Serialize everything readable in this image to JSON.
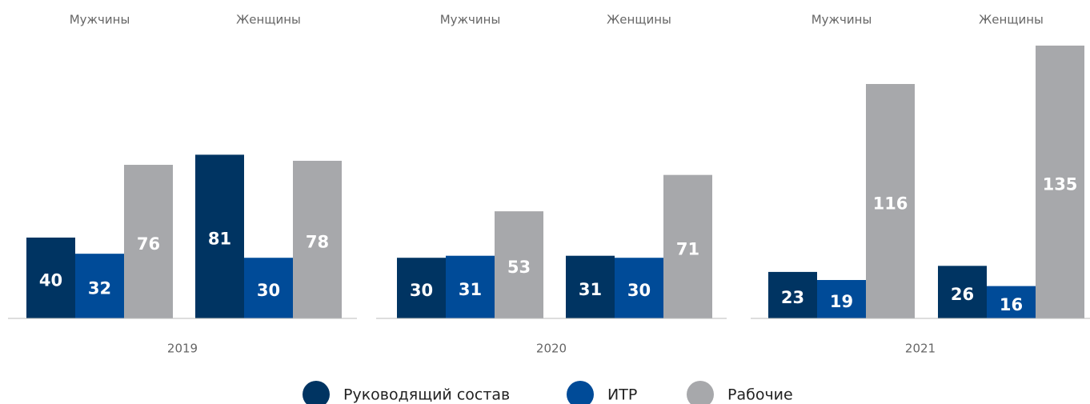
{
  "chart_data": [
    {
      "type": "bar",
      "title": "2019",
      "categories": [
        "Мужчины",
        "Женщины"
      ],
      "ylim": [
        0,
        135
      ],
      "series": [
        {
          "name": "Руководящий состав",
          "color": "#003462",
          "values": [
            40,
            81
          ]
        },
        {
          "name": "ИТР",
          "color": "#004b98",
          "values": [
            32,
            30
          ]
        },
        {
          "name": "Рабочие",
          "color": "#a7a8ab",
          "values": [
            76,
            78
          ]
        }
      ]
    },
    {
      "type": "bar",
      "title": "2020",
      "categories": [
        "Мужчины",
        "Женщины"
      ],
      "ylim": [
        0,
        135
      ],
      "series": [
        {
          "name": "Руководящий состав",
          "color": "#003462",
          "values": [
            30,
            31
          ]
        },
        {
          "name": "ИТР",
          "color": "#004b98",
          "values": [
            31,
            30
          ]
        },
        {
          "name": "Рабочие",
          "color": "#a7a8ab",
          "values": [
            53,
            71
          ]
        }
      ]
    },
    {
      "type": "bar",
      "title": "2021",
      "categories": [
        "Мужчины",
        "Женщины"
      ],
      "ylim": [
        0,
        135
      ],
      "series": [
        {
          "name": "Руководящий состав",
          "color": "#003462",
          "values": [
            23,
            26
          ]
        },
        {
          "name": "ИТР",
          "color": "#004b98",
          "values": [
            19,
            16
          ]
        },
        {
          "name": "Рабочие",
          "color": "#a7a8ab",
          "values": [
            116,
            135
          ]
        }
      ]
    }
  ]
}
